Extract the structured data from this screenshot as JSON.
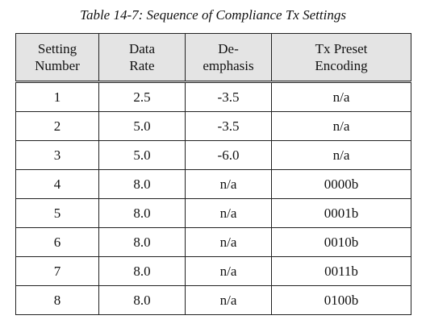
{
  "caption": "Table 14-7: Sequence of Compliance Tx Settings",
  "columns": [
    {
      "line1": "Setting",
      "line2": "Number"
    },
    {
      "line1": "Data",
      "line2": "Rate"
    },
    {
      "line1": "De-",
      "line2": "emphasis"
    },
    {
      "line1": "Tx Preset",
      "line2": "Encoding"
    }
  ],
  "rows": [
    [
      "1",
      "2.5",
      "-3.5",
      "n/a"
    ],
    [
      "2",
      "5.0",
      "-3.5",
      "n/a"
    ],
    [
      "3",
      "5.0",
      "-6.0",
      "n/a"
    ],
    [
      "4",
      "8.0",
      "n/a",
      "0000b"
    ],
    [
      "5",
      "8.0",
      "n/a",
      "0001b"
    ],
    [
      "6",
      "8.0",
      "n/a",
      "0010b"
    ],
    [
      "7",
      "8.0",
      "n/a",
      "0011b"
    ],
    [
      "8",
      "8.0",
      "n/a",
      "0100b"
    ]
  ],
  "colors": {
    "header_background": "#e4e4e4",
    "border": "#222222",
    "text": "#111111"
  }
}
